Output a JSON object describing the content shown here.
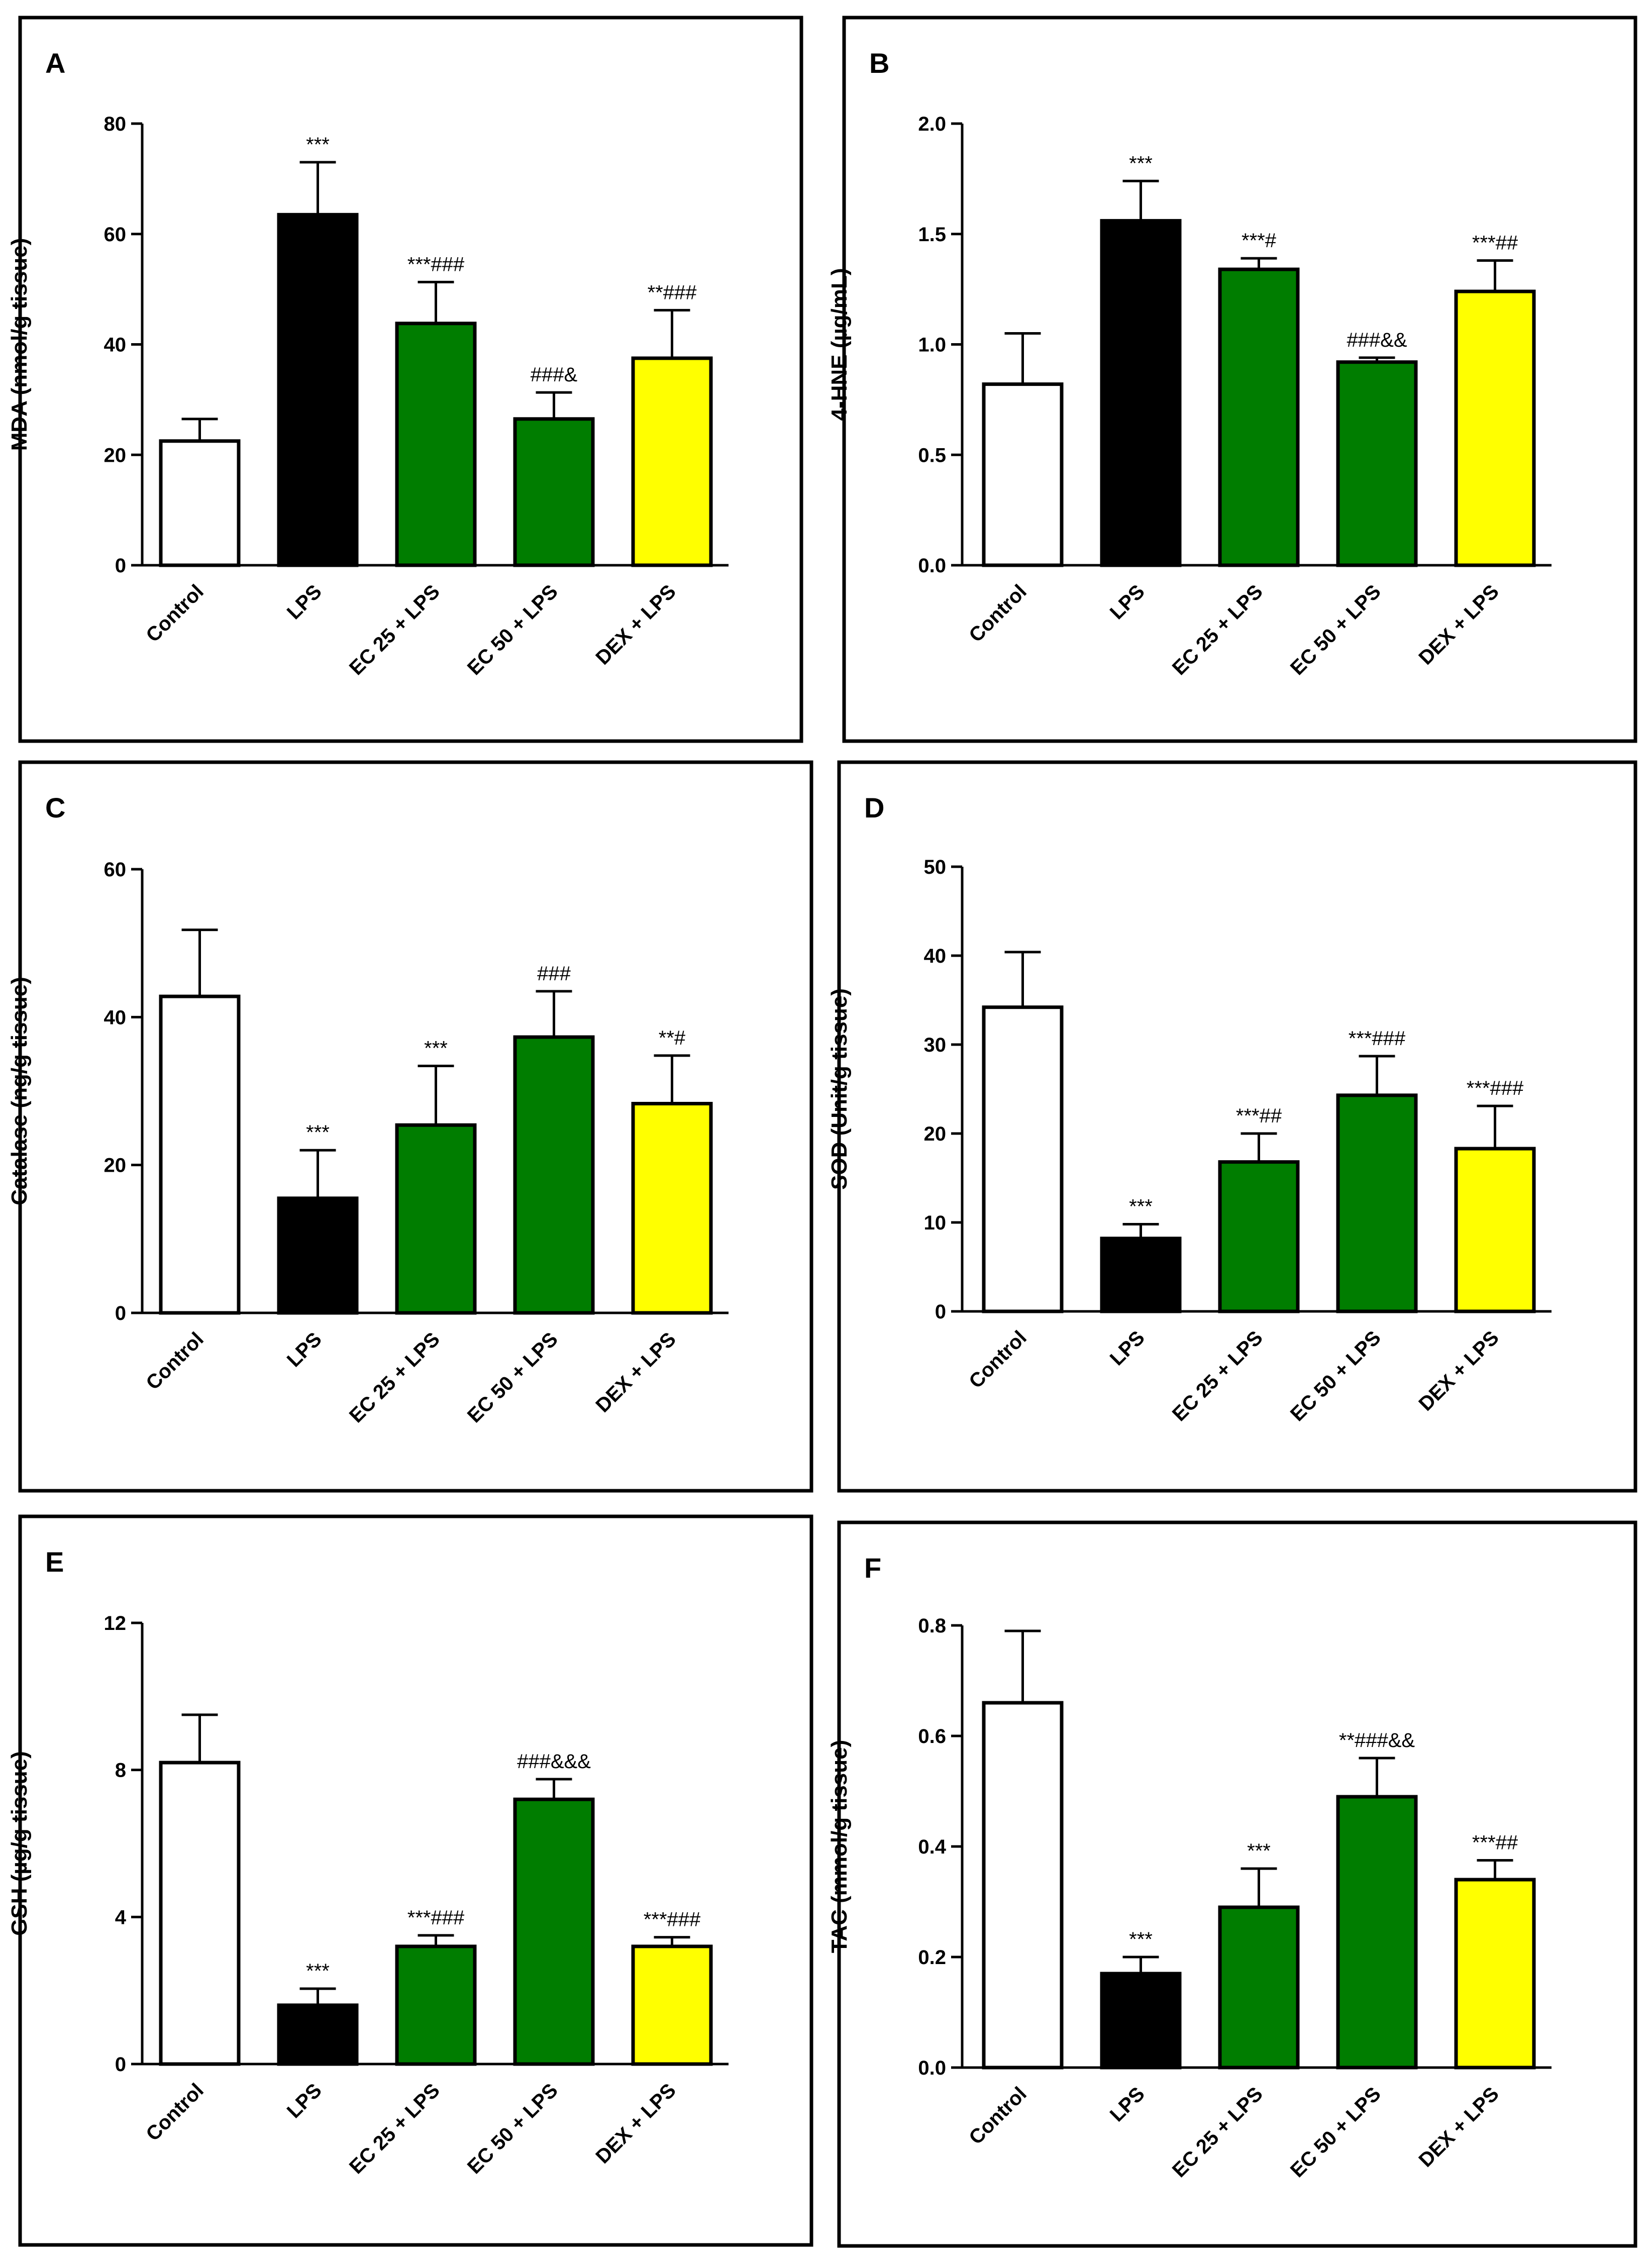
{
  "figure": {
    "colors": {
      "white": "#ffffff",
      "black": "#000000",
      "green": "#007d00",
      "yellow": "#ffff00"
    }
  },
  "chart_data": [
    {
      "panel": "A",
      "type": "bar",
      "categories": [
        "Control",
        "LPS",
        "EC 25 + LPS",
        "EC 50 + LPS",
        "DEX + LPS"
      ],
      "values": [
        22.5,
        63.5,
        43.8,
        26.5,
        37.5
      ],
      "errors": [
        4.0,
        9.5,
        7.5,
        4.8,
        8.7
      ],
      "annotations": [
        "",
        "***",
        "***###",
        "###&",
        "**###"
      ],
      "bar_colors": [
        "white",
        "black",
        "green",
        "green",
        "yellow"
      ],
      "title": "",
      "xlabel": "",
      "ylabel": "MDA (nmol/g tissue)",
      "ylim": [
        0,
        80
      ],
      "yticks": [
        "0",
        "20",
        "40",
        "60",
        "80"
      ]
    },
    {
      "panel": "B",
      "type": "bar",
      "categories": [
        "Control",
        "LPS",
        "EC 25 + LPS",
        "EC 50 + LPS",
        "DEX + LPS"
      ],
      "values": [
        0.82,
        1.56,
        1.34,
        0.92,
        1.24
      ],
      "errors": [
        0.23,
        0.18,
        0.05,
        0.02,
        0.14
      ],
      "annotations": [
        "",
        "***",
        "***#",
        "###&&",
        "***##"
      ],
      "bar_colors": [
        "white",
        "black",
        "green",
        "green",
        "yellow"
      ],
      "title": "",
      "xlabel": "",
      "ylabel": "4-HNE (µg/mL)",
      "ylim": [
        0,
        2.0
      ],
      "yticks": [
        "0.0",
        "0.5",
        "1.0",
        "1.5",
        "2.0"
      ]
    },
    {
      "panel": "C",
      "type": "bar",
      "categories": [
        "Control",
        "LPS",
        "EC 25 + LPS",
        "EC 50 + LPS",
        "DEX + LPS"
      ],
      "values": [
        42.8,
        15.5,
        25.4,
        37.3,
        28.3
      ],
      "errors": [
        9.0,
        6.5,
        8.0,
        6.2,
        6.5
      ],
      "annotations": [
        "",
        "***",
        "***",
        "###",
        "**#"
      ],
      "bar_colors": [
        "white",
        "black",
        "green",
        "green",
        "yellow"
      ],
      "title": "",
      "xlabel": "",
      "ylabel": "Catalase (ng/g tissue)",
      "ylim": [
        0,
        60
      ],
      "yticks": [
        "0",
        "20",
        "40",
        "60"
      ]
    },
    {
      "panel": "D",
      "type": "bar",
      "categories": [
        "Control",
        "LPS",
        "EC 25 + LPS",
        "EC 50 + LPS",
        "DEX + LPS"
      ],
      "values": [
        34.2,
        8.2,
        16.8,
        24.3,
        18.3
      ],
      "errors": [
        6.2,
        1.6,
        3.2,
        4.4,
        4.8
      ],
      "annotations": [
        "",
        "***",
        "***##",
        "***###",
        "***###"
      ],
      "bar_colors": [
        "white",
        "black",
        "green",
        "green",
        "yellow"
      ],
      "title": "",
      "xlabel": "",
      "ylabel": "SOD (Unit/g tissue)",
      "ylim": [
        0,
        50
      ],
      "yticks": [
        "0",
        "10",
        "20",
        "30",
        "40",
        "50"
      ]
    },
    {
      "panel": "E",
      "type": "bar",
      "categories": [
        "Control",
        "LPS",
        "EC 25 + LPS",
        "EC 50 + LPS",
        "DEX + LPS"
      ],
      "values": [
        8.2,
        1.6,
        3.2,
        7.2,
        3.2
      ],
      "errors": [
        1.3,
        0.45,
        0.3,
        0.55,
        0.25
      ],
      "annotations": [
        "",
        "***",
        "***###",
        "###&&&",
        "***###"
      ],
      "bar_colors": [
        "white",
        "black",
        "green",
        "green",
        "yellow"
      ],
      "title": "",
      "xlabel": "",
      "ylabel": "GSH (µg/g tissue)",
      "ylim": [
        0,
        12
      ],
      "yticks": [
        "0",
        "4",
        "8",
        "12"
      ]
    },
    {
      "panel": "F",
      "type": "bar",
      "categories": [
        "Control",
        "LPS",
        "EC 25 + LPS",
        "EC 50 + LPS",
        "DEX + LPS"
      ],
      "values": [
        0.66,
        0.17,
        0.29,
        0.49,
        0.34
      ],
      "errors": [
        0.13,
        0.03,
        0.07,
        0.07,
        0.035
      ],
      "annotations": [
        "",
        "***",
        "***",
        "**###&&",
        "***##"
      ],
      "bar_colors": [
        "white",
        "black",
        "green",
        "green",
        "yellow"
      ],
      "title": "",
      "xlabel": "",
      "ylabel": "TAC (mmol/g tissue)",
      "ylim": [
        0,
        0.8
      ],
      "yticks": [
        "0.0",
        "0.2",
        "0.4",
        "0.6",
        "0.8"
      ]
    }
  ]
}
